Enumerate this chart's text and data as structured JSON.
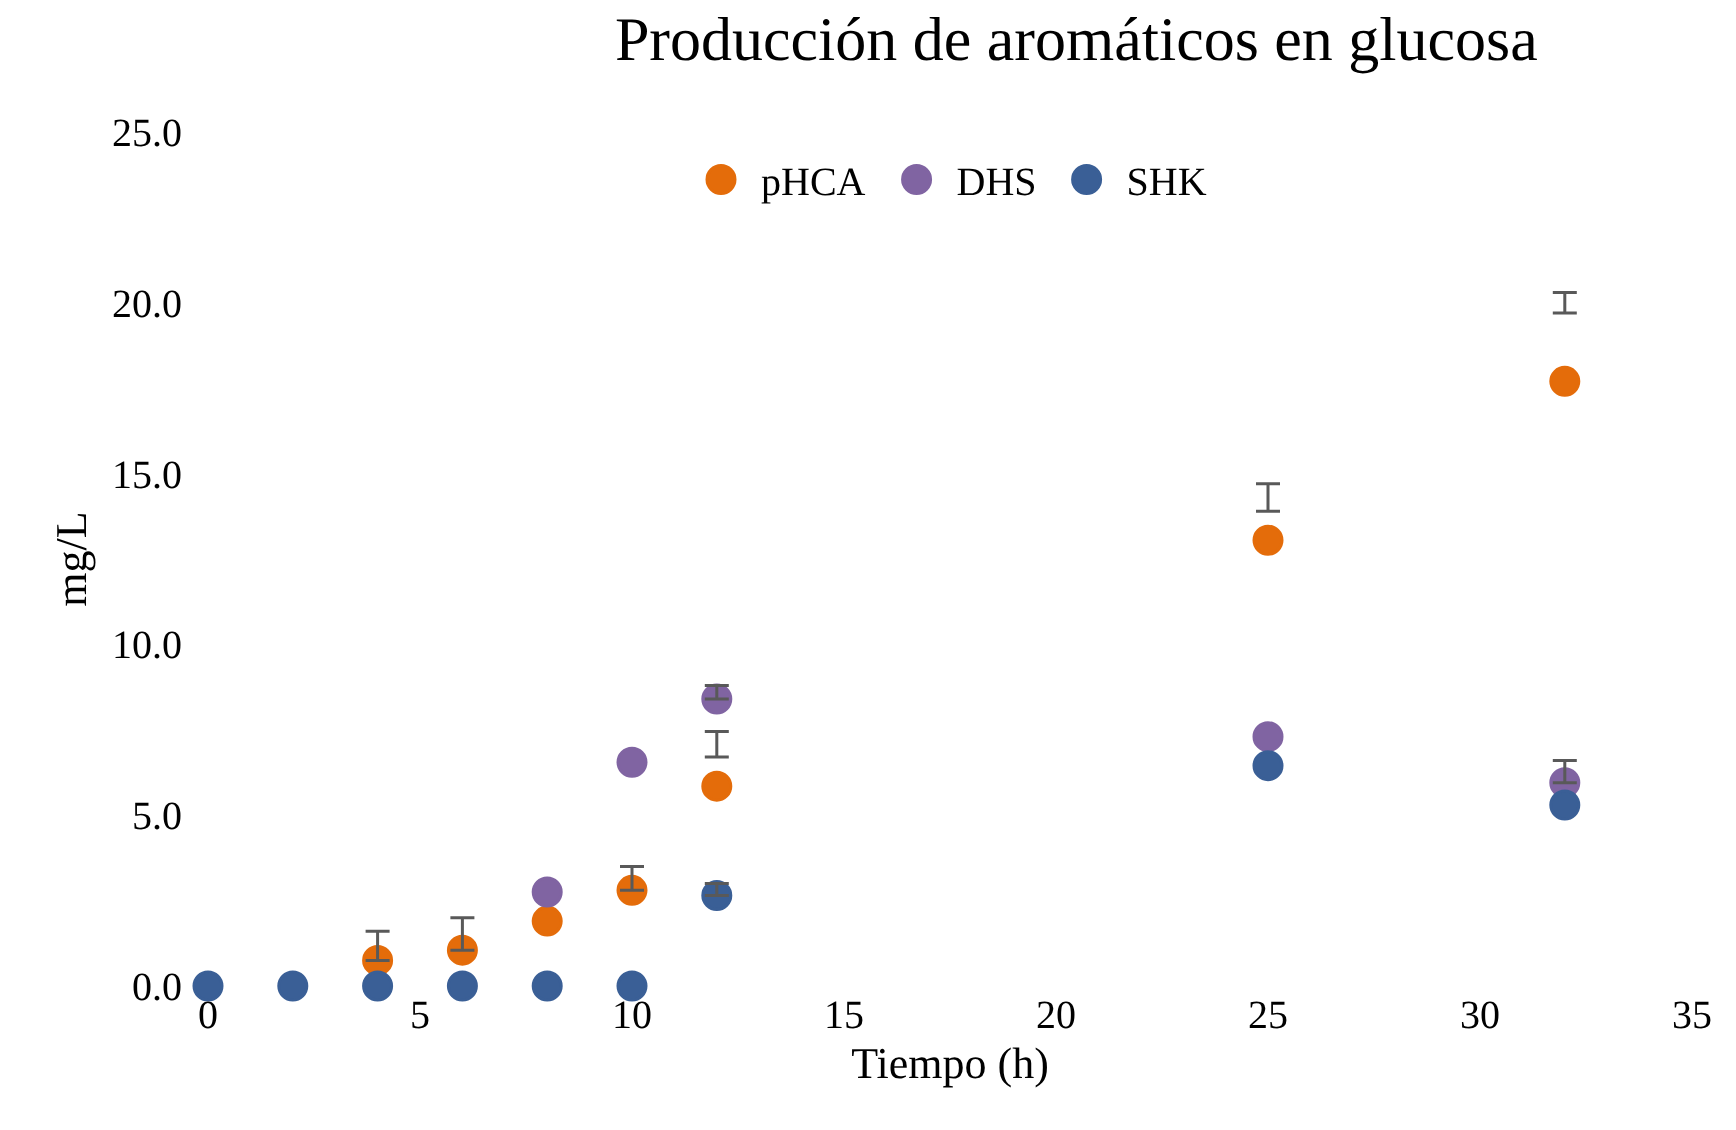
{
  "chart_data": {
    "type": "scatter",
    "title": "Producción de aromáticos en glucosa",
    "xlabel": "Tiempo (h)",
    "ylabel": "mg/L",
    "x": [
      0,
      2,
      4,
      6,
      8,
      10,
      12,
      25,
      32
    ],
    "series": [
      {
        "name": "pHCA",
        "color": "#e46c0a",
        "values": [
          null,
          null,
          0.75,
          1.05,
          1.9,
          2.8,
          5.85,
          13.05,
          17.7
        ],
        "errors": [
          null,
          null,
          [
            0.75,
            1.6
          ],
          [
            1.05,
            2.0
          ],
          null,
          [
            2.8,
            3.5
          ],
          [
            6.7,
            7.45
          ],
          [
            13.9,
            14.7
          ],
          [
            19.7,
            20.3
          ]
        ]
      },
      {
        "name": "DHS",
        "color": "#8064a2",
        "values": [
          null,
          null,
          null,
          null,
          2.75,
          6.55,
          8.4,
          7.3,
          5.95
        ],
        "errors": [
          null,
          null,
          null,
          null,
          null,
          null,
          [
            8.4,
            8.8
          ],
          null,
          [
            5.95,
            6.6
          ]
        ]
      },
      {
        "name": "SHK",
        "color": "#3a5f96",
        "values": [
          0,
          0,
          0,
          0,
          0,
          0,
          2.65,
          6.45,
          5.3
        ],
        "errors": [
          null,
          null,
          null,
          null,
          null,
          null,
          [
            2.65,
            3.0
          ],
          null,
          null
        ]
      }
    ],
    "xlim": [
      0,
      35
    ],
    "xticks": [
      0,
      5,
      10,
      15,
      20,
      25,
      30,
      35
    ],
    "ylim": [
      0,
      25
    ],
    "yticks": [
      {
        "value": 0,
        "label": "0.0"
      },
      {
        "value": 5,
        "label": "5.0"
      },
      {
        "value": 10,
        "label": "10.0"
      },
      {
        "value": 15,
        "label": "15.0"
      },
      {
        "value": 20,
        "label": "20.0"
      },
      {
        "value": 25,
        "label": "25.0"
      }
    ],
    "grid": false,
    "legend": "top",
    "marker": "circle"
  }
}
